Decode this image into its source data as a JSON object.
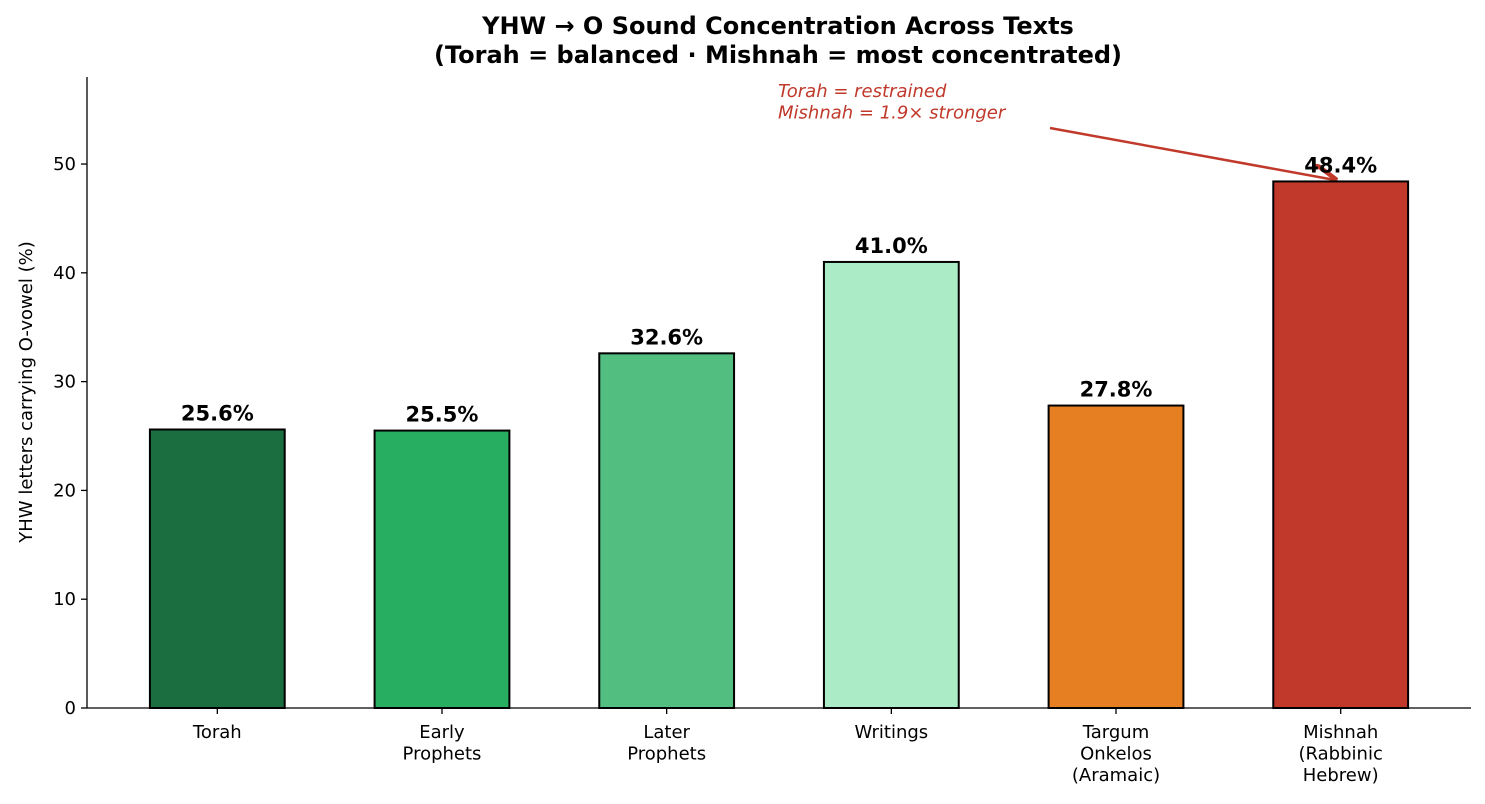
{
  "chart_data": {
    "type": "bar",
    "title": "YHW → O Sound Concentration Across Texts\n(Torah = balanced · Mishnah = most concentrated)",
    "y_label": "YHW letters carrying O-vowel (%)",
    "categories": [
      "Torah",
      "Early\nProphets",
      "Later\nProphets",
      "Writings",
      "Targum\nOnkelos\n(Aramaic)",
      "Mishnah\n(Rabbinic\nHebrew)"
    ],
    "values": [
      25.6,
      25.5,
      32.6,
      41.0,
      27.8,
      48.4
    ],
    "value_labels": [
      "25.6%",
      "25.5%",
      "32.6%",
      "41.0%",
      "27.8%",
      "48.4%"
    ],
    "colors": [
      "#1a6e40",
      "#27ae60",
      "#52bf80",
      "#abebc6",
      "#e67e22",
      "#c0392b"
    ],
    "ylim": [
      0,
      58
    ],
    "yticks": [
      0,
      10,
      20,
      30,
      40,
      50
    ],
    "grid": false,
    "annotation": "Torah = restrained\nMishnah = 1.9× stronger"
  }
}
